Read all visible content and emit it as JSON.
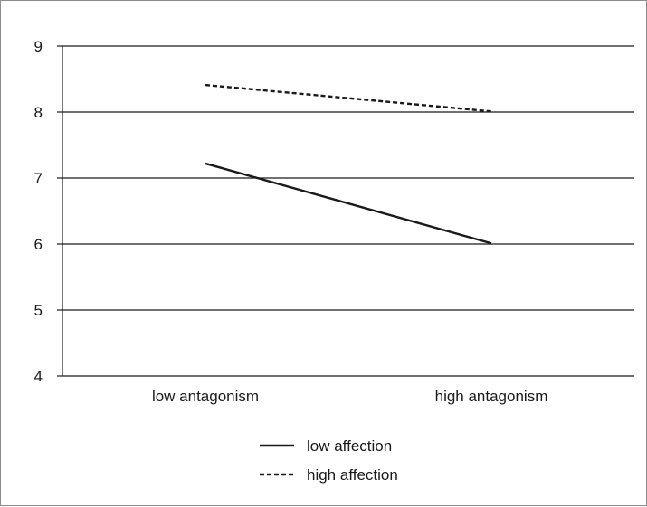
{
  "chart_data": {
    "type": "line",
    "title": "",
    "xlabel": "",
    "ylabel": "",
    "categories": [
      "low antagonism",
      "high antagonism"
    ],
    "ylim": [
      4,
      9
    ],
    "yticks": [
      "4",
      "5",
      "6",
      "7",
      "8",
      "9"
    ],
    "grid": "horizontal",
    "legend_position": "bottom",
    "series": [
      {
        "name": "low affection",
        "values": [
          7.22,
          6.01
        ],
        "line_style": "solid",
        "color": "#1a1a1a"
      },
      {
        "name": "high affection",
        "values": [
          8.41,
          8.01
        ],
        "line_style": "dashed",
        "color": "#1a1a1a"
      }
    ]
  }
}
